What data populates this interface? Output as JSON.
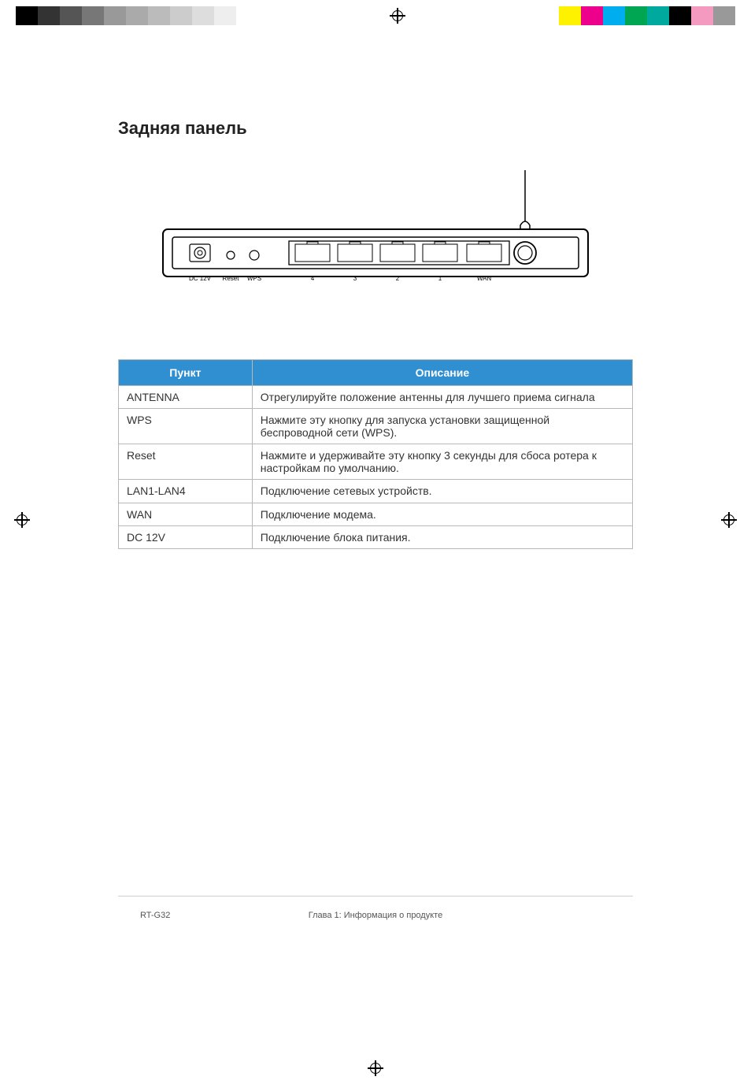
{
  "title": "Задняя панель",
  "diagram": {
    "port_labels": {
      "dc": "DC 12V",
      "reset": "Reset",
      "wps": "WPS",
      "lan4": "4",
      "lan3": "3",
      "lan2": "2",
      "lan1": "1",
      "wan": "WAN"
    }
  },
  "table": {
    "header_bg": "#2f8fd0",
    "header_fg": "#ffffff",
    "border_color": "#b8b8b8",
    "columns": [
      "Пункт",
      "Описание"
    ],
    "rows": [
      [
        "ANTENNA",
        "Отрегулируйте положение антенны для лучшего приема сигнала"
      ],
      [
        "WPS",
        "Нажмите эту кнопку для запуска установки защищенной беспроводной сети (WPS)."
      ],
      [
        "Reset",
        "Нажмите и удерживайте эту кнопку 3 секунды для сбоса ротера к настройкам по умолчанию."
      ],
      [
        "LAN1-LAN4",
        "Подключение сетевых устройств."
      ],
      [
        "WAN",
        "Подключение модема."
      ],
      [
        "DC 12V",
        "Подключение блока питания."
      ]
    ]
  },
  "footer": {
    "left": "RT-G32",
    "center": "Глава 1: Информация о продукте",
    "right": ""
  },
  "proof_colors_left": [
    "#000000",
    "#333333",
    "#555555",
    "#777777",
    "#999999",
    "#aaaaaa",
    "#bbbbbb",
    "#cccccc",
    "#dddddd",
    "#eeeeee"
  ],
  "proof_colors_right": [
    "#fff200",
    "#ec008c",
    "#00aeef",
    "#00a651",
    "#00a99d",
    "#000000",
    "#f49ac1",
    "#999999"
  ]
}
